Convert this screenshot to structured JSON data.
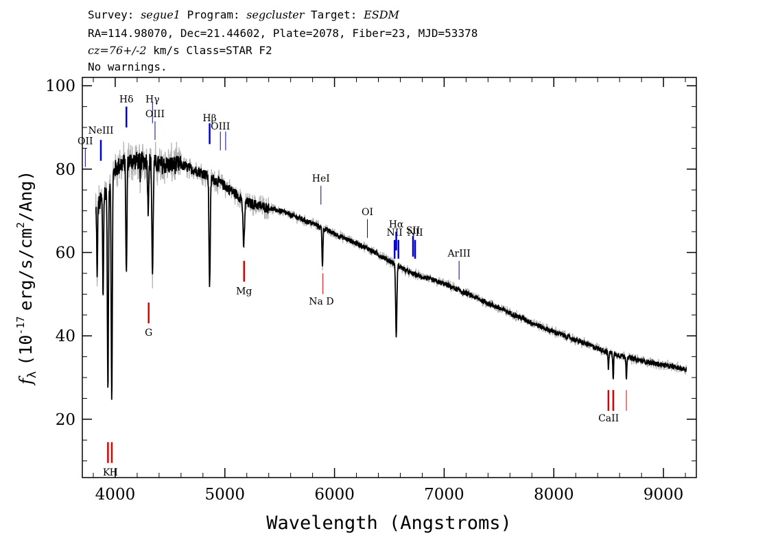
{
  "header": {
    "survey_label": "Survey:",
    "survey": "segue1",
    "program_label": "Program:",
    "program": "segcluster",
    "target_label": "Target:",
    "target": "ESDM",
    "line2": "RA=114.98070, Dec=21.44602, Plate=2078, Fiber=23, MJD=53378",
    "cz": "cz=76+/-2",
    "line3_rest": "km/s Class=STAR F2",
    "line4": "No warnings."
  },
  "chart_data": {
    "type": "line",
    "xlabel": "Wavelength (Angstroms)",
    "ylabel_prefix": "f",
    "ylabel_sub": "λ",
    "ylabel_unit_a": "(10",
    "ylabel_exp": "-17",
    "ylabel_unit_b": "erg/s/cm",
    "ylabel_exp2": "2",
    "ylabel_unit_c": "/Ang)",
    "xlim": [
      3700,
      9300
    ],
    "ylim": [
      6,
      102
    ],
    "x_ticks": [
      4000,
      5000,
      6000,
      7000,
      8000,
      9000
    ],
    "y_ticks": [
      20,
      40,
      60,
      80,
      100
    ],
    "colors": {
      "spectrum": "#000000",
      "error": "#b4b4b4",
      "emission": "#0000cc",
      "absorption": "#dd0000"
    },
    "continuum": [
      [
        3820,
        70
      ],
      [
        3900,
        74
      ],
      [
        4000,
        80
      ],
      [
        4100,
        82
      ],
      [
        4200,
        82
      ],
      [
        4300,
        82
      ],
      [
        4400,
        81
      ],
      [
        4500,
        81
      ],
      [
        4600,
        81
      ],
      [
        4700,
        80
      ],
      [
        4800,
        79
      ],
      [
        5000,
        76
      ],
      [
        5200,
        72
      ],
      [
        5500,
        70
      ],
      [
        5800,
        67
      ],
      [
        6000,
        64.5
      ],
      [
        6300,
        61
      ],
      [
        6500,
        58
      ],
      [
        6700,
        55
      ],
      [
        7000,
        52.5
      ],
      [
        7300,
        49
      ],
      [
        7600,
        45.5
      ],
      [
        7900,
        42
      ],
      [
        8200,
        39
      ],
      [
        8500,
        36
      ],
      [
        8800,
        34
      ],
      [
        9000,
        33
      ],
      [
        9200,
        32
      ]
    ],
    "absorption_features": [
      {
        "x": 3835,
        "depth": 18,
        "width": 5
      },
      {
        "x": 3889,
        "depth": 24,
        "width": 6
      },
      {
        "x": 3933,
        "depth": 50,
        "width": 7
      },
      {
        "x": 3968,
        "depth": 55,
        "width": 7
      },
      {
        "x": 4102,
        "depth": 28,
        "width": 7
      },
      {
        "x": 4227,
        "depth": 6,
        "width": 4
      },
      {
        "x": 4300,
        "depth": 12,
        "width": 6
      },
      {
        "x": 4340,
        "depth": 27,
        "width": 8
      },
      {
        "x": 4861,
        "depth": 26,
        "width": 8
      },
      {
        "x": 5172,
        "depth": 11,
        "width": 10
      },
      {
        "x": 5890,
        "depth": 9,
        "width": 6
      },
      {
        "x": 6563,
        "depth": 17,
        "width": 8
      },
      {
        "x": 8498,
        "depth": 4,
        "width": 5
      },
      {
        "x": 8542,
        "depth": 6,
        "width": 5
      },
      {
        "x": 8662,
        "depth": 5,
        "width": 5
      }
    ],
    "emission_lines": [
      {
        "label": "OII",
        "x": 3727,
        "y0": 80.5,
        "y1": 85,
        "ly": 86,
        "c": "thin"
      },
      {
        "label": "NeIII",
        "x": 3869,
        "y0": 82,
        "y1": 87,
        "ly": 88.5,
        "c": "blue"
      },
      {
        "label": "Hδ",
        "x": 4102,
        "y0": 90,
        "y1": 95,
        "ly": 96,
        "c": "blue"
      },
      {
        "label": "Hγ",
        "x": 4340,
        "y0": 91,
        "y1": 96,
        "ly": 96,
        "c": "thin"
      },
      {
        "label": "OIII",
        "x": 4363,
        "y0": 87,
        "y1": 91.5,
        "ly": 92.5,
        "c": "thin"
      },
      {
        "label": "Hβ",
        "x": 4861,
        "y0": 86,
        "y1": 91,
        "ly": 91.5,
        "c": "blue"
      },
      {
        "label": "OIII",
        "x": 4959,
        "y0": 84.5,
        "y1": 89,
        "ly": 89.5,
        "c": "thin"
      },
      {
        "label": "",
        "x": 5007,
        "y0": 84.5,
        "y1": 89,
        "ly": 0,
        "c": "thin"
      },
      {
        "label": "HeI",
        "x": 5876,
        "y0": 71.5,
        "y1": 76,
        "ly": 77,
        "c": "thin"
      },
      {
        "label": "OI",
        "x": 6300,
        "y0": 63.5,
        "y1": 68,
        "ly": 69,
        "c": "thin"
      },
      {
        "label": "NII",
        "x": 6548,
        "y0": 58.5,
        "y1": 63,
        "ly": 64,
        "c": "blue"
      },
      {
        "label": "Hα",
        "x": 6563,
        "y0": 60.5,
        "y1": 65,
        "ly": 66,
        "c": "blue"
      },
      {
        "label": "",
        "x": 6583,
        "y0": 58.5,
        "y1": 63,
        "ly": 0,
        "c": "blue"
      },
      {
        "label": "SII",
        "x": 6716,
        "y0": 59,
        "y1": 64,
        "ly": 64.5,
        "c": "blue"
      },
      {
        "label": "NII",
        "x": 6735,
        "y0": 58.5,
        "y1": 63,
        "ly": 64,
        "c": "blue"
      },
      {
        "label": "ArIII",
        "x": 7136,
        "y0": 53.5,
        "y1": 58,
        "ly": 59,
        "c": "thin"
      }
    ],
    "absorption_lines": [
      {
        "label": "K",
        "x": 3934,
        "y0": 9.5,
        "y1": 14.5,
        "ly": 6.5,
        "lx": 3920,
        "c": "red"
      },
      {
        "label": "H",
        "x": 3969,
        "y0": 9.5,
        "y1": 14.5,
        "ly": 6.5,
        "lx": 3986,
        "c": "red"
      },
      {
        "label": "G",
        "x": 4305,
        "y0": 43,
        "y1": 48,
        "ly": 40,
        "lx": 4305,
        "c": "red"
      },
      {
        "label": "Mg",
        "x": 5175,
        "y0": 53,
        "y1": 58,
        "ly": 50,
        "lx": 5175,
        "c": "red"
      },
      {
        "label": "Na D",
        "x": 5894,
        "y0": 50,
        "y1": 55,
        "ly": 47.5,
        "lx": 5880,
        "c": "thinred"
      },
      {
        "label": "CaII",
        "x": 8498,
        "y0": 22,
        "y1": 27,
        "ly": 19.5,
        "lx": 8500,
        "c": "red"
      },
      {
        "label": "",
        "x": 8542,
        "y0": 22,
        "y1": 27,
        "ly": 0,
        "lx": 0,
        "c": "red"
      },
      {
        "label": "",
        "x": 8662,
        "y0": 22,
        "y1": 27,
        "ly": 0,
        "lx": 0,
        "c": "thinred"
      }
    ]
  }
}
